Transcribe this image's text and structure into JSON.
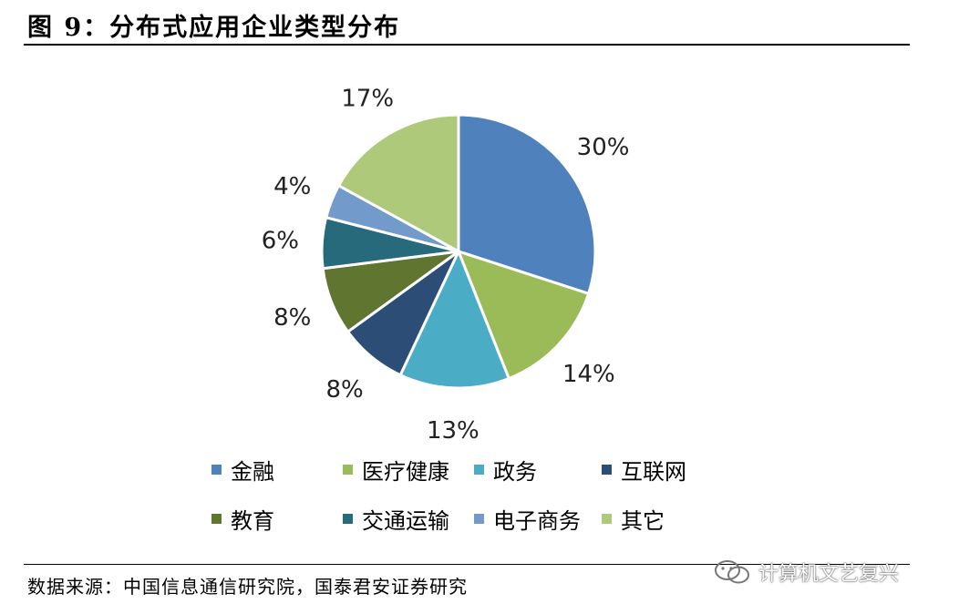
{
  "figure": {
    "title": "图 9：分布式应用企业类型分布",
    "source": "数据来源：中国信息通信研究院，国泰君安证券研究",
    "watermark": "计算机文艺复兴",
    "watermark_icon": "wechat-icon"
  },
  "chart_data": {
    "type": "pie",
    "title": "",
    "categories": [
      "金融",
      "医疗健康",
      "政务",
      "互联网",
      "教育",
      "交通运输",
      "电子商务",
      "其它"
    ],
    "values": [
      30,
      14,
      13,
      8,
      8,
      6,
      4,
      17
    ],
    "labels": [
      "30%",
      "14%",
      "13%",
      "8%",
      "8%",
      "6%",
      "4%",
      "17%"
    ],
    "unit": "%",
    "colors": [
      "#4F81BD",
      "#9BBB59",
      "#4BACC6",
      "#2C4D75",
      "#5F7530",
      "#276A7C",
      "#729ACA",
      "#AFC97A"
    ],
    "start_angle": "12 o'clock",
    "direction": "clockwise",
    "legend_position": "bottom"
  }
}
